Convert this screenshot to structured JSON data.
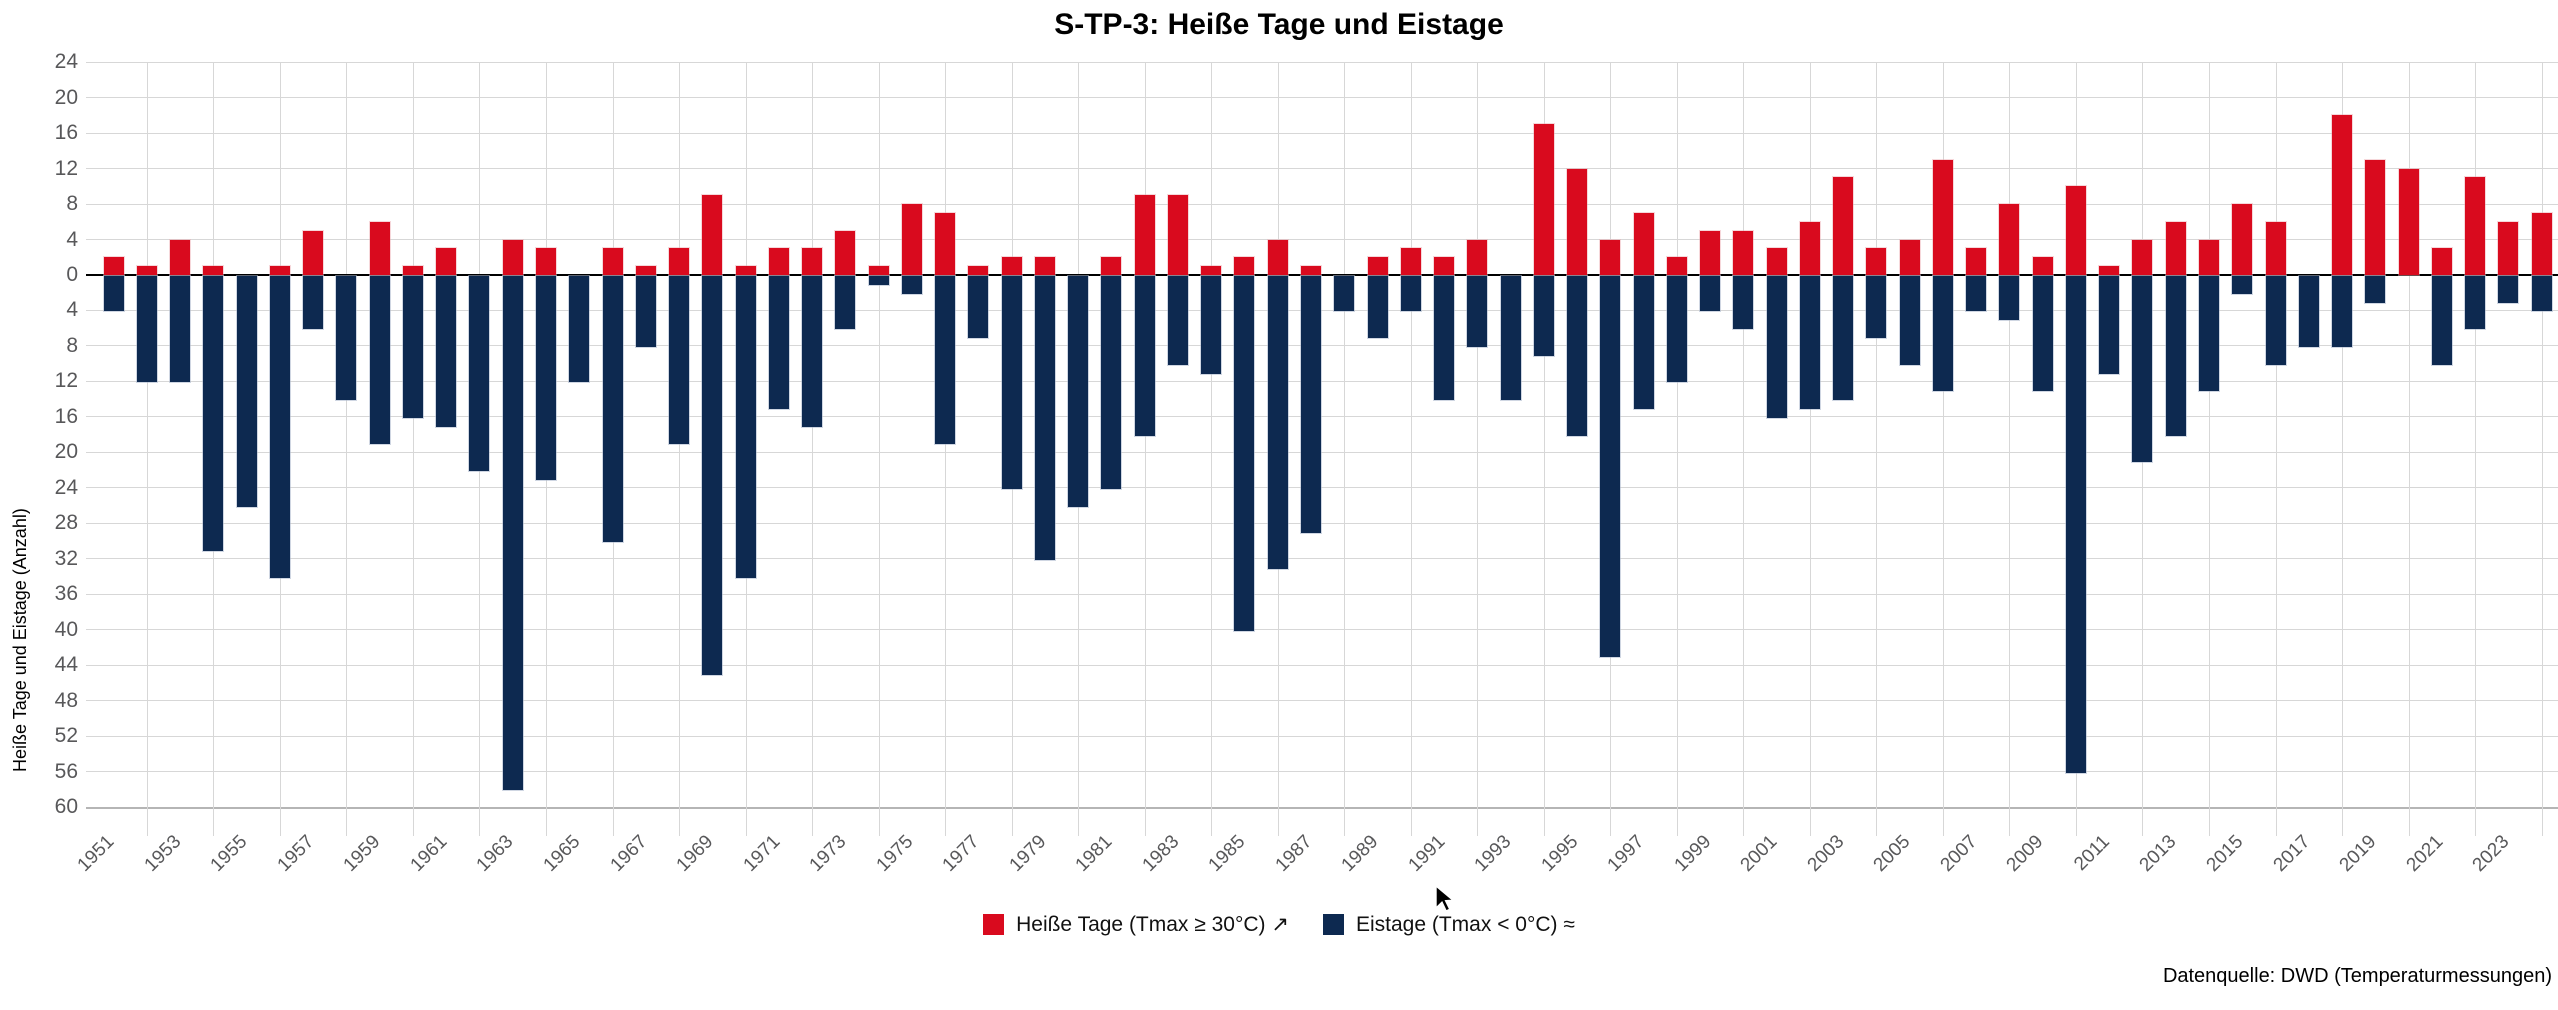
{
  "title": "S-TP-3: Heiße Tage und Eistage",
  "y_axis": {
    "title": "Heiße Tage und Eistage (Anzahl)",
    "max": 24,
    "min": -60,
    "tick_interval": 4,
    "tick_labels_absolute": true
  },
  "x_axis": {
    "labeled_years": [
      1951,
      1953,
      1955,
      1957,
      1959,
      1961,
      1963,
      1965,
      1967,
      1969,
      1971,
      1973,
      1975,
      1977,
      1979,
      1981,
      1983,
      1985,
      1987,
      1989,
      1991,
      1993,
      1995,
      1997,
      1999,
      2001,
      2003,
      2005,
      2007,
      2009,
      2011,
      2013,
      2015,
      2017,
      2019,
      2021,
      2023
    ]
  },
  "legend": {
    "items": [
      {
        "label": "Heiße Tage (Tmax ≥ 30°C) ↗",
        "color": "#D90A1E"
      },
      {
        "label": "Eistage (Tmax < 0°C) ≈",
        "color": "#0D2950"
      }
    ]
  },
  "source": "Datenquelle: DWD (Temperaturmessungen)",
  "colors": {
    "hot": "#D90A1E",
    "ice": "#0D2950",
    "gridline": "#D7D7D7",
    "baseline_gridline": "#B5B5B5",
    "zero_line": "#000000",
    "axis_text": "#58585A",
    "background": "#FFFFFF"
  },
  "chart_data": {
    "type": "bar",
    "subtype": "diverging-vertical",
    "title": "S-TP-3: Heiße Tage und Eistage",
    "ylabel": "Heiße Tage und Eistage (Anzahl)",
    "ylim": [
      -60,
      24
    ],
    "grid": true,
    "legend_position": "bottom",
    "years": [
      1951,
      1952,
      1953,
      1954,
      1955,
      1956,
      1957,
      1958,
      1959,
      1960,
      1961,
      1962,
      1963,
      1964,
      1965,
      1966,
      1967,
      1968,
      1969,
      1970,
      1971,
      1972,
      1973,
      1974,
      1975,
      1976,
      1977,
      1978,
      1979,
      1980,
      1981,
      1982,
      1983,
      1984,
      1985,
      1986,
      1987,
      1988,
      1989,
      1990,
      1991,
      1992,
      1993,
      1994,
      1995,
      1996,
      1997,
      1998,
      1999,
      2000,
      2001,
      2002,
      2003,
      2004,
      2005,
      2006,
      2007,
      2008,
      2009,
      2010,
      2011,
      2012,
      2013,
      2014,
      2015,
      2016,
      2017,
      2018,
      2019,
      2020,
      2021,
      2022,
      2023,
      2024
    ],
    "series": [
      {
        "name": "Heiße Tage (Tmax ≥ 30°C)",
        "direction": "up",
        "color": "#D90A1E",
        "values": [
          2,
          1,
          4,
          1,
          0,
          1,
          5,
          0,
          6,
          1,
          3,
          0,
          4,
          3,
          0,
          3,
          1,
          3,
          9,
          1,
          3,
          3,
          5,
          1,
          8,
          7,
          1,
          2,
          2,
          0,
          2,
          9,
          9,
          1,
          2,
          4,
          1,
          0,
          2,
          3,
          2,
          4,
          0,
          17,
          12,
          4,
          7,
          2,
          5,
          5,
          3,
          6,
          11,
          3,
          4,
          13,
          3,
          8,
          2,
          10,
          1,
          4,
          6,
          4,
          8,
          6,
          0,
          18,
          13,
          12,
          3,
          11,
          6,
          7
        ]
      },
      {
        "name": "Eistage (Tmax < 0°C)",
        "direction": "down",
        "color": "#0D2950",
        "values": [
          4,
          12,
          12,
          31,
          26,
          34,
          6,
          14,
          19,
          16,
          17,
          22,
          58,
          23,
          12,
          30,
          8,
          19,
          45,
          34,
          15,
          17,
          6,
          1,
          2,
          19,
          7,
          24,
          32,
          26,
          24,
          18,
          10,
          11,
          40,
          33,
          29,
          4,
          7,
          4,
          14,
          8,
          14,
          9,
          18,
          43,
          15,
          12,
          4,
          6,
          16,
          15,
          14,
          7,
          10,
          13,
          4,
          5,
          13,
          56,
          11,
          21,
          18,
          13,
          2,
          10,
          8,
          8,
          3,
          0,
          10,
          6,
          3,
          4
        ]
      }
    ]
  }
}
